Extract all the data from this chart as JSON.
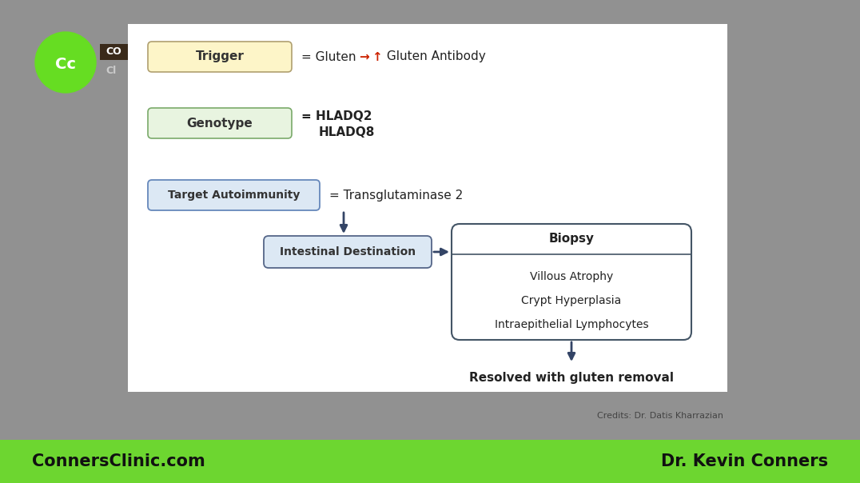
{
  "bg_outer": "#919191",
  "bg_white": "#ffffff",
  "bg_green_bar": "#6dd630",
  "trigger_box_fill": "#fdf5c8",
  "trigger_box_edge": "#b0a070",
  "trigger_label": "Trigger",
  "genotype_box_fill": "#e8f4e0",
  "genotype_box_edge": "#7aaa6a",
  "genotype_label": "Genotype",
  "genotype_text1": "= HLADQ2",
  "genotype_text2": "HLADQ8",
  "target_box_fill": "#dce8f4",
  "target_box_edge": "#6688bb",
  "target_label": "Target Autoimmunity",
  "target_text": "= Transglutaminase 2",
  "intestinal_box_fill": "#dce8f4",
  "intestinal_box_edge": "#556688",
  "intestinal_label": "Intestinal Destination",
  "biopsy_box_fill": "#ffffff",
  "biopsy_box_edge": "#445566",
  "biopsy_title": "Biopsy",
  "biopsy_items": [
    "Villous Atrophy",
    "Crypt Hyperplasia",
    "Intraepithelial Lymphocytes"
  ],
  "resolved_text": "Resolved with gluten removal",
  "credits_text": "Credits: Dr. Datis Kharrazian",
  "footer_left": "ConnersClinic.com",
  "footer_right": "Dr. Kevin Conners",
  "arrow_color": "#334466",
  "red_color": "#cc2200",
  "logo_green": "#66dd22",
  "logo_text": "Cc",
  "logo_co": "CO",
  "logo_cl": "Cl"
}
